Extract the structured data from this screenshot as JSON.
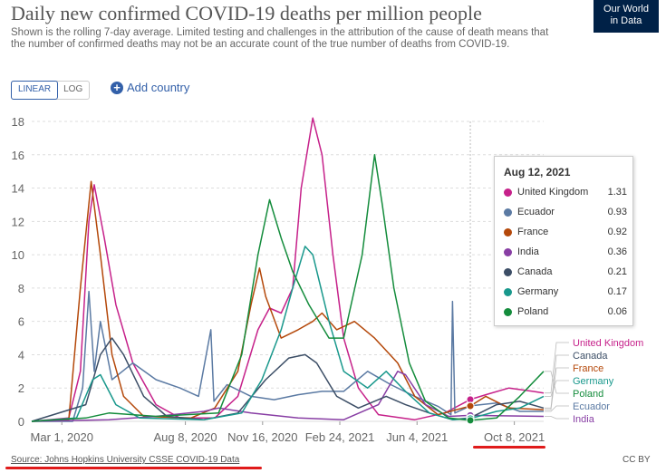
{
  "header": {
    "title": "Daily new confirmed COVID-19 deaths per million people",
    "subtitle": "Shown is the rolling 7-day average. Limited testing and challenges in the attribution of the cause of death means that the number of confirmed deaths may not be an accurate count of the true number of deaths from COVID-19.",
    "logo_line1": "Our World",
    "logo_line2": "in Data"
  },
  "controls": {
    "linear_label": "LINEAR",
    "log_label": "LOG",
    "add_country_label": "Add country"
  },
  "footer": {
    "source": "Source: Johns Hopkins University CSSE COVID-19 Data",
    "license": "CC BY"
  },
  "colors": {
    "United Kingdom": "#c6218a",
    "Ecuador": "#5b7aa3",
    "France": "#b4480a",
    "India": "#883ea4",
    "Canada": "#3c4e66",
    "Germany": "#19988c",
    "Poland": "#148c3c",
    "annotation": "#e01b1b"
  },
  "tooltip": {
    "date": "Aug 12, 2021",
    "rows": [
      {
        "name": "United Kingdom",
        "value": "1.31"
      },
      {
        "name": "Ecuador",
        "value": "0.93"
      },
      {
        "name": "France",
        "value": "0.92"
      },
      {
        "name": "India",
        "value": "0.36"
      },
      {
        "name": "Canada",
        "value": "0.21"
      },
      {
        "name": "Germany",
        "value": "0.17"
      },
      {
        "name": "Poland",
        "value": "0.06"
      }
    ]
  },
  "chart_data": {
    "type": "line",
    "title": "Daily new confirmed COVID-19 deaths per million people",
    "xlabel": "",
    "ylabel": "",
    "ylim": [
      0,
      18
    ],
    "yticks": [
      0,
      2,
      4,
      6,
      8,
      10,
      12,
      14,
      16,
      18
    ],
    "xticks": [
      "Mar 1, 2020",
      "Aug 8, 2020",
      "Nov 16, 2020",
      "Feb 24, 2021",
      "Jun 4, 2021",
      "Oct 8, 2021"
    ],
    "xlim": [
      "2020-01-22",
      "2021-11-15"
    ],
    "grid": "horizontal dashed",
    "legend": "right end labels",
    "series": [
      {
        "name": "United Kingdom",
        "points": [
          [
            "2020-01-22",
            0
          ],
          [
            "2020-03-10",
            0.2
          ],
          [
            "2020-03-25",
            3
          ],
          [
            "2020-04-05",
            12
          ],
          [
            "2020-04-12",
            14.2
          ],
          [
            "2020-04-25",
            11
          ],
          [
            "2020-05-10",
            7
          ],
          [
            "2020-06-01",
            3.5
          ],
          [
            "2020-07-01",
            1
          ],
          [
            "2020-08-01",
            0.2
          ],
          [
            "2020-09-15",
            0.2
          ],
          [
            "2020-10-15",
            1.5
          ],
          [
            "2020-11-10",
            5.5
          ],
          [
            "2020-11-25",
            6.8
          ],
          [
            "2020-12-10",
            6.5
          ],
          [
            "2020-12-25",
            8
          ],
          [
            "2021-01-05",
            14
          ],
          [
            "2021-01-20",
            18.2
          ],
          [
            "2021-02-01",
            16
          ],
          [
            "2021-02-15",
            10
          ],
          [
            "2021-03-01",
            5
          ],
          [
            "2021-03-20",
            2
          ],
          [
            "2021-04-15",
            0.4
          ],
          [
            "2021-06-01",
            0.1
          ],
          [
            "2021-07-10",
            0.5
          ],
          [
            "2021-08-12",
            1.31
          ],
          [
            "2021-09-01",
            1.6
          ],
          [
            "2021-10-01",
            2
          ],
          [
            "2021-11-01",
            1.8
          ],
          [
            "2021-11-15",
            1.7
          ]
        ]
      },
      {
        "name": "Ecuador",
        "points": [
          [
            "2020-01-22",
            0
          ],
          [
            "2020-03-15",
            0
          ],
          [
            "2020-03-28",
            2
          ],
          [
            "2020-04-05",
            7.8
          ],
          [
            "2020-04-12",
            3
          ],
          [
            "2020-04-20",
            6
          ],
          [
            "2020-05-05",
            2.5
          ],
          [
            "2020-06-01",
            3.5
          ],
          [
            "2020-07-01",
            2.5
          ],
          [
            "2020-08-01",
            2
          ],
          [
            "2020-08-25",
            1.5
          ],
          [
            "2020-09-10",
            5.5
          ],
          [
            "2020-09-14",
            1.2
          ],
          [
            "2020-10-01",
            2.2
          ],
          [
            "2020-11-01",
            1.5
          ],
          [
            "2020-12-01",
            1.3
          ],
          [
            "2021-01-01",
            1.6
          ],
          [
            "2021-02-01",
            1.8
          ],
          [
            "2021-03-01",
            1.8
          ],
          [
            "2021-04-01",
            3
          ],
          [
            "2021-05-01",
            2.2
          ],
          [
            "2021-06-01",
            1.5
          ],
          [
            "2021-07-01",
            0.9
          ],
          [
            "2021-07-18",
            0.4
          ],
          [
            "2021-07-20",
            7.2
          ],
          [
            "2021-07-23",
            0.5
          ],
          [
            "2021-08-12",
            0.93
          ],
          [
            "2021-09-15",
            1.1
          ],
          [
            "2021-10-15",
            0.6
          ],
          [
            "2021-11-15",
            0.6
          ]
        ]
      },
      {
        "name": "France",
        "points": [
          [
            "2020-01-22",
            0
          ],
          [
            "2020-03-10",
            0.1
          ],
          [
            "2020-03-25",
            8
          ],
          [
            "2020-04-08",
            14.4
          ],
          [
            "2020-04-20",
            10
          ],
          [
            "2020-05-05",
            4
          ],
          [
            "2020-05-20",
            1.5
          ],
          [
            "2020-06-15",
            0.3
          ],
          [
            "2020-08-15",
            0.2
          ],
          [
            "2020-09-15",
            0.8
          ],
          [
            "2020-10-15",
            3
          ],
          [
            "2020-11-01",
            7
          ],
          [
            "2020-11-12",
            9.2
          ],
          [
            "2020-11-20",
            7.5
          ],
          [
            "2020-12-10",
            5
          ],
          [
            "2021-01-01",
            5.5
          ],
          [
            "2021-01-20",
            6
          ],
          [
            "2021-02-01",
            6.5
          ],
          [
            "2021-02-20",
            5.5
          ],
          [
            "2021-03-15",
            6
          ],
          [
            "2021-04-10",
            5
          ],
          [
            "2021-04-20",
            4.5
          ],
          [
            "2021-05-10",
            3.5
          ],
          [
            "2021-06-01",
            1.5
          ],
          [
            "2021-07-01",
            0.4
          ],
          [
            "2021-08-12",
            0.92
          ],
          [
            "2021-09-01",
            1.5
          ],
          [
            "2021-10-01",
            0.8
          ],
          [
            "2021-11-15",
            0.7
          ]
        ]
      },
      {
        "name": "India",
        "points": [
          [
            "2020-01-22",
            0
          ],
          [
            "2020-05-01",
            0.1
          ],
          [
            "2020-07-01",
            0.3
          ],
          [
            "2020-09-01",
            0.6
          ],
          [
            "2020-09-20",
            0.8
          ],
          [
            "2020-11-01",
            0.5
          ],
          [
            "2021-01-01",
            0.2
          ],
          [
            "2021-03-01",
            0.1
          ],
          [
            "2021-04-15",
            1
          ],
          [
            "2021-05-10",
            3
          ],
          [
            "2021-05-20",
            2.8
          ],
          [
            "2021-06-15",
            1
          ],
          [
            "2021-07-15",
            0.3
          ],
          [
            "2021-08-12",
            0.36
          ],
          [
            "2021-11-15",
            0.3
          ]
        ]
      },
      {
        "name": "Canada",
        "points": [
          [
            "2020-01-22",
            0
          ],
          [
            "2020-04-01",
            1
          ],
          [
            "2020-04-20",
            4
          ],
          [
            "2020-05-05",
            5
          ],
          [
            "2020-05-20",
            4
          ],
          [
            "2020-06-15",
            1.5
          ],
          [
            "2020-07-15",
            0.3
          ],
          [
            "2020-09-01",
            0.1
          ],
          [
            "2020-10-15",
            0.5
          ],
          [
            "2020-11-20",
            2.5
          ],
          [
            "2020-12-20",
            3.8
          ],
          [
            "2021-01-10",
            4
          ],
          [
            "2021-01-25",
            3.5
          ],
          [
            "2021-02-20",
            1.5
          ],
          [
            "2021-03-20",
            0.8
          ],
          [
            "2021-04-25",
            1.5
          ],
          [
            "2021-05-20",
            1
          ],
          [
            "2021-06-20",
            0.5
          ],
          [
            "2021-07-20",
            0.1
          ],
          [
            "2021-08-12",
            0.21
          ],
          [
            "2021-09-15",
            1
          ],
          [
            "2021-10-15",
            1.2
          ],
          [
            "2021-11-15",
            0.8
          ]
        ]
      },
      {
        "name": "Germany",
        "points": [
          [
            "2020-01-22",
            0
          ],
          [
            "2020-03-20",
            0.2
          ],
          [
            "2020-04-10",
            2.5
          ],
          [
            "2020-04-20",
            2.8
          ],
          [
            "2020-05-10",
            1
          ],
          [
            "2020-06-10",
            0.2
          ],
          [
            "2020-09-01",
            0.1
          ],
          [
            "2020-10-20",
            0.5
          ],
          [
            "2020-11-15",
            2.5
          ],
          [
            "2020-12-10",
            5.5
          ],
          [
            "2020-12-25",
            8
          ],
          [
            "2021-01-10",
            10.5
          ],
          [
            "2021-01-20",
            10
          ],
          [
            "2021-02-10",
            6
          ],
          [
            "2021-03-01",
            3
          ],
          [
            "2021-04-01",
            2
          ],
          [
            "2021-04-25",
            3
          ],
          [
            "2021-05-20",
            1.8
          ],
          [
            "2021-06-20",
            0.5
          ],
          [
            "2021-07-20",
            0.1
          ],
          [
            "2021-08-12",
            0.17
          ],
          [
            "2021-09-15",
            0.6
          ],
          [
            "2021-10-15",
            0.8
          ],
          [
            "2021-11-15",
            1.5
          ]
        ]
      },
      {
        "name": "Poland",
        "points": [
          [
            "2020-01-22",
            0
          ],
          [
            "2020-04-01",
            0.2
          ],
          [
            "2020-05-01",
            0.5
          ],
          [
            "2020-07-01",
            0.3
          ],
          [
            "2020-09-20",
            0.5
          ],
          [
            "2020-10-20",
            4
          ],
          [
            "2020-11-10",
            10
          ],
          [
            "2020-11-25",
            13.3
          ],
          [
            "2020-12-10",
            11
          ],
          [
            "2020-12-25",
            9
          ],
          [
            "2021-01-15",
            7
          ],
          [
            "2021-02-10",
            5
          ],
          [
            "2021-03-01",
            5
          ],
          [
            "2021-03-25",
            10
          ],
          [
            "2021-04-10",
            16
          ],
          [
            "2021-04-20",
            13
          ],
          [
            "2021-05-05",
            8
          ],
          [
            "2021-05-25",
            3.5
          ],
          [
            "2021-06-15",
            1.2
          ],
          [
            "2021-07-15",
            0.2
          ],
          [
            "2021-08-12",
            0.06
          ],
          [
            "2021-09-15",
            0.2
          ],
          [
            "2021-10-15",
            1.5
          ],
          [
            "2021-11-15",
            3
          ]
        ]
      }
    ],
    "end_labels": [
      "United Kingdom",
      "Canada",
      "France",
      "Germany",
      "Poland",
      "Ecuador",
      "India"
    ],
    "hover_date": "2021-08-12"
  }
}
